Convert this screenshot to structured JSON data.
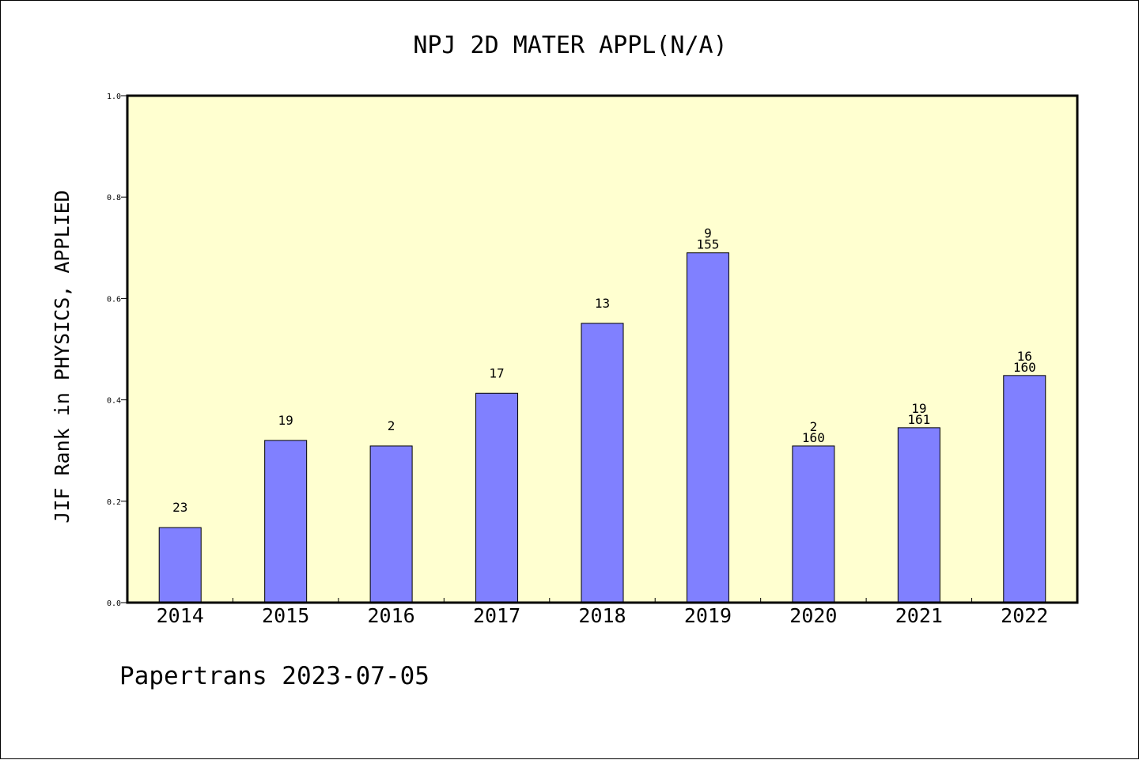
{
  "chart_data": {
    "type": "bar",
    "title": "NPJ 2D MATER APPL(N/A)",
    "xlabel": "",
    "ylabel": "JIF Rank in PHYSICS, APPLIED",
    "ylim": [
      0,
      1.0
    ],
    "yticks": [
      "0.0",
      "0.2",
      "0.4",
      "0.6",
      "0.8",
      "1.0"
    ],
    "grid": false,
    "categories": [
      "2014",
      "2015",
      "2016",
      "2017",
      "2018",
      "2019",
      "2020",
      "2021",
      "2022"
    ],
    "values": [
      0.148,
      0.32,
      0.309,
      0.413,
      0.551,
      0.69,
      0.309,
      0.345,
      0.448
    ],
    "labels_top": [
      "",
      "",
      "",
      "",
      "",
      "9",
      "2",
      "19",
      "16"
    ],
    "labels_bottom": [
      "23",
      "19",
      "2",
      "17",
      "13",
      "155",
      "160",
      "161",
      "160"
    ],
    "colors": {
      "bar": "#8080ff",
      "plot_background": "#ffffd0",
      "axis": "#000000"
    }
  },
  "footer": {
    "text": "Papertrans 2023-07-05"
  }
}
